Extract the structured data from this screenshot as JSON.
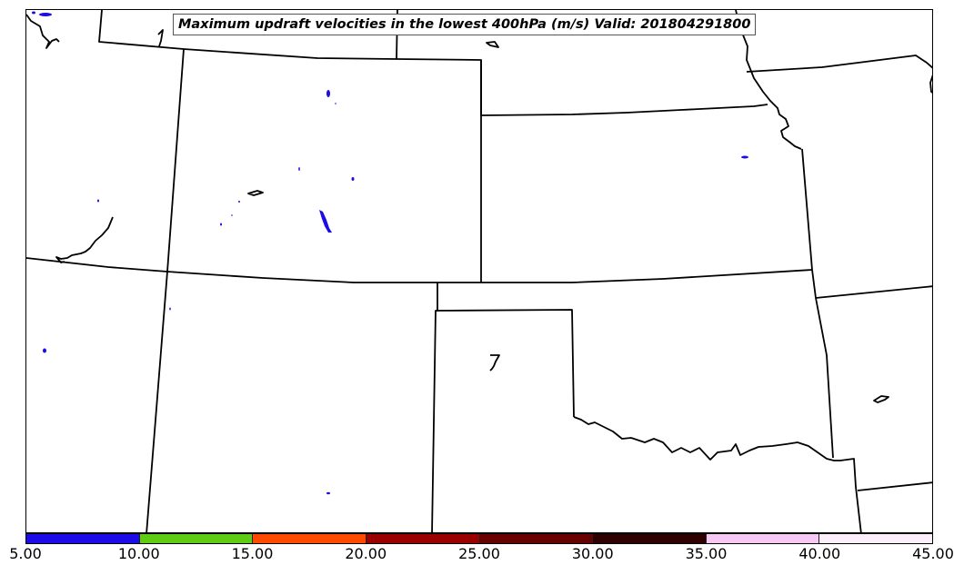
{
  "title": "Maximum updraft velocities in the lowest 400hPa (m/s) Valid: 201804291800",
  "colorbar": {
    "unit": "m/s",
    "ticks": [
      "5.00",
      "10.00",
      "15.00",
      "20.00",
      "25.00",
      "30.00",
      "35.00",
      "40.00",
      "45.00"
    ],
    "bins": [
      {
        "range": [
          5,
          10
        ],
        "color": "#1e0ce8"
      },
      {
        "range": [
          10,
          15
        ],
        "color": "#5ecc14"
      },
      {
        "range": [
          15,
          20
        ],
        "color": "#ff4a00"
      },
      {
        "range": [
          20,
          25
        ],
        "color": "#9a0000"
      },
      {
        "range": [
          25,
          30
        ],
        "color": "#680000"
      },
      {
        "range": [
          30,
          35
        ],
        "color": "#2e0000"
      },
      {
        "range": [
          35,
          40
        ],
        "color": "#f8c8f4"
      },
      {
        "range": [
          40,
          45
        ],
        "color": "#fdeefc"
      }
    ]
  },
  "map": {
    "region": "Central Plains, United States",
    "boundary_color": "#000000",
    "updraft_fill_color": "#1e0ce8",
    "max_bin_present": "5.00-10.00"
  }
}
